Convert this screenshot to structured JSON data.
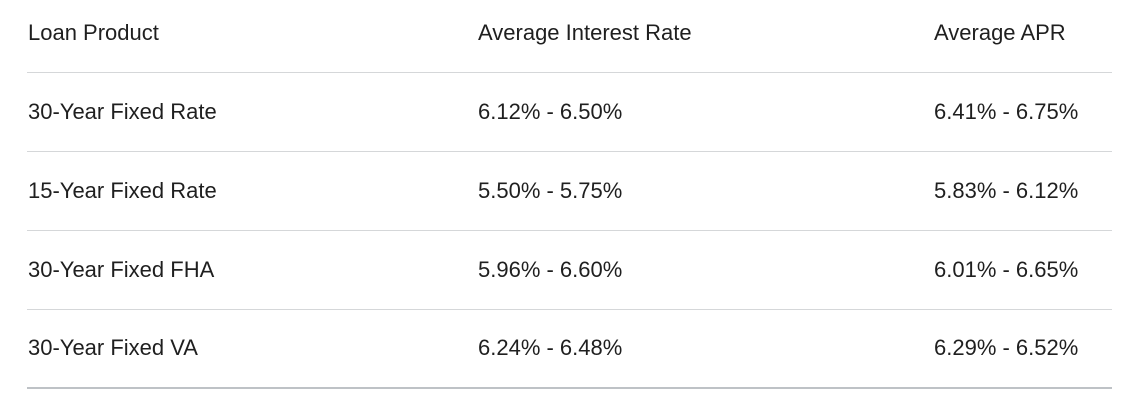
{
  "chart_data": {
    "type": "table",
    "columns": [
      "Loan Product",
      "Average Interest Rate",
      "Average APR"
    ],
    "rows": [
      [
        "30-Year Fixed Rate",
        "6.12% - 6.50%",
        "6.41% - 6.75%"
      ],
      [
        "15-Year Fixed Rate",
        "5.50% - 5.75%",
        "5.83% - 6.12%"
      ],
      [
        "30-Year Fixed FHA",
        "5.96% - 6.60%",
        "6.01% - 6.65%"
      ],
      [
        "30-Year Fixed VA",
        "6.24% - 6.48%",
        "6.29% - 6.52%"
      ]
    ]
  },
  "colors": {
    "text": "#1f1f1f",
    "divider": "#d5d7d9",
    "bottom_border": "#bec2c6",
    "background": "#ffffff"
  }
}
